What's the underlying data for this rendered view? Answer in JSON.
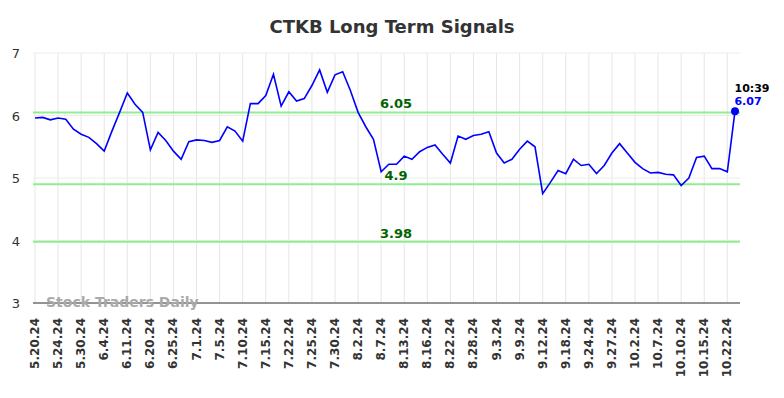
{
  "chart_data": {
    "type": "line",
    "title": "CTKB Long Term Signals",
    "categories": [
      "5.20.24",
      null,
      null,
      "5.24.24",
      null,
      null,
      "5.30.24",
      null,
      null,
      "6.4.24",
      null,
      null,
      "6.11.24",
      null,
      null,
      "6.20.24",
      null,
      null,
      "6.25.24",
      null,
      null,
      "7.1.24",
      null,
      null,
      "7.5.24",
      null,
      null,
      "7.10.24",
      null,
      null,
      "7.15.24",
      null,
      null,
      "7.22.24",
      null,
      null,
      "7.25.24",
      null,
      null,
      "7.30.24",
      null,
      null,
      "8.2.24",
      null,
      null,
      "8.7.24",
      null,
      null,
      "8.13.24",
      null,
      null,
      "8.16.24",
      null,
      null,
      "8.22.24",
      null,
      null,
      "8.28.24",
      null,
      null,
      "9.3.24",
      null,
      null,
      "9.9.24",
      null,
      null,
      "9.12.24",
      null,
      null,
      "9.18.24",
      null,
      null,
      "9.24.24",
      null,
      null,
      "9.27.24",
      null,
      null,
      "10.2.24",
      null,
      null,
      "10.7.24",
      null,
      null,
      "10.10.24",
      null,
      null,
      "10.15.24",
      null,
      null,
      "10.22.24",
      null
    ],
    "values": [
      5.96,
      5.97,
      5.93,
      5.96,
      5.94,
      5.78,
      5.7,
      5.65,
      5.55,
      5.43,
      5.75,
      6.05,
      6.36,
      6.18,
      6.05,
      5.45,
      5.73,
      5.6,
      5.43,
      5.3,
      5.58,
      5.61,
      5.6,
      5.57,
      5.6,
      5.82,
      5.75,
      5.59,
      6.19,
      6.19,
      6.32,
      6.66,
      6.15,
      6.38,
      6.23,
      6.27,
      6.48,
      6.73,
      6.37,
      6.65,
      6.7,
      6.4,
      6.05,
      5.82,
      5.62,
      5.1,
      5.22,
      5.22,
      5.35,
      5.3,
      5.42,
      5.49,
      5.53,
      5.38,
      5.24,
      5.67,
      5.62,
      5.68,
      5.7,
      5.74,
      5.4,
      5.24,
      5.3,
      5.46,
      5.59,
      5.5,
      4.75,
      4.93,
      5.12,
      5.07,
      5.3,
      5.2,
      5.22,
      5.07,
      5.2,
      5.4,
      5.55,
      5.4,
      5.25,
      5.15,
      5.08,
      5.09,
      5.06,
      5.05,
      4.88,
      5.0,
      5.33,
      5.35,
      5.15,
      5.15,
      5.1,
      6.07
    ],
    "color": "#0000ff",
    "ylim": [
      3,
      7
    ],
    "yticks": [
      3,
      4,
      5,
      6,
      7
    ],
    "grid": true,
    "hlines": [
      6.05,
      4.9,
      3.98
    ],
    "annotation": "10:39",
    "watermark": "Stock Traders Daily"
  }
}
